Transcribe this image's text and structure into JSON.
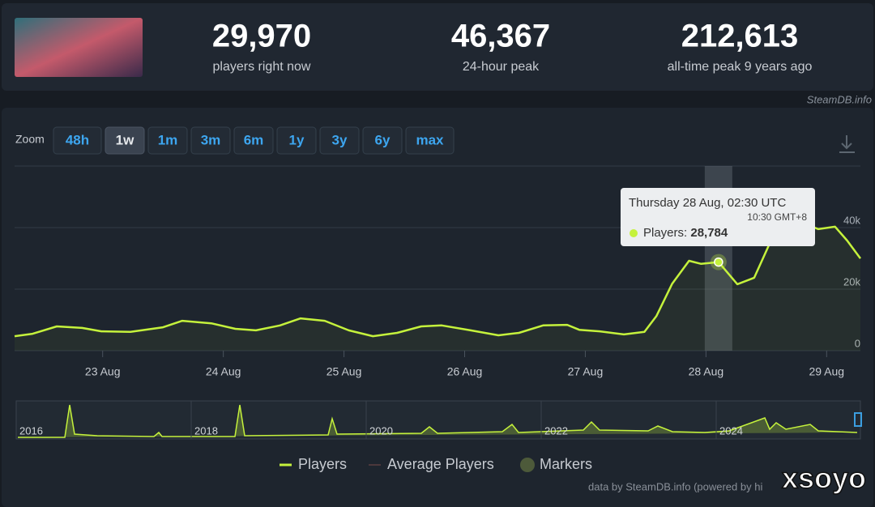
{
  "header": {
    "stats": [
      {
        "value": "29,970",
        "label": "players right now"
      },
      {
        "value": "46,367",
        "label": "24-hour peak"
      },
      {
        "value": "212,613",
        "label": "all-time peak 9 years ago"
      }
    ],
    "site": "SteamDB.info"
  },
  "zoom": {
    "label": "Zoom",
    "buttons": [
      "48h",
      "1w",
      "1m",
      "3m",
      "6m",
      "1y",
      "3y",
      "6y",
      "max"
    ],
    "active": 1
  },
  "chart_data": {
    "type": "line",
    "x": [
      22.27,
      22.42,
      22.62,
      22.83,
      22.99,
      23.23,
      23.5,
      23.66,
      23.9,
      24.1,
      24.27,
      24.47,
      24.64,
      24.84,
      25.04,
      25.24,
      25.44,
      25.64,
      25.81,
      26.05,
      26.28,
      26.45,
      26.65,
      26.85,
      26.95,
      27.12,
      27.32,
      27.49,
      27.59,
      27.72,
      27.86,
      27.96,
      28.104,
      28.26,
      28.4,
      28.53,
      28.65,
      28.73,
      28.8,
      28.93,
      29.07,
      29.17,
      29.28
    ],
    "series": [
      {
        "name": "Players",
        "color": "#c5f23c",
        "values": [
          4700,
          5500,
          7900,
          7400,
          6300,
          6100,
          7600,
          9700,
          8900,
          7100,
          6600,
          8200,
          10500,
          9700,
          6600,
          4700,
          5800,
          7900,
          8200,
          6600,
          5000,
          5800,
          8200,
          8400,
          6800,
          6300,
          5300,
          6100,
          11300,
          21800,
          29200,
          28200,
          28784,
          21600,
          23700,
          35000,
          45000,
          46000,
          41600,
          39500,
          40300,
          35800,
          29970
        ]
      }
    ],
    "xlim": [
      22.27,
      29.28
    ],
    "xticks": [
      {
        "value": 23,
        "label": "23 Aug"
      },
      {
        "value": 24,
        "label": "24 Aug"
      },
      {
        "value": 25,
        "label": "25 Aug"
      },
      {
        "value": 26,
        "label": "26 Aug"
      },
      {
        "value": 27,
        "label": "27 Aug"
      },
      {
        "value": 28,
        "label": "28 Aug"
      },
      {
        "value": 29,
        "label": "29 Aug"
      }
    ],
    "ylim": [
      0,
      60000
    ],
    "yticks": [
      0,
      {
        "value": 20000,
        "label": "20k"
      },
      {
        "value": 40000,
        "label": "40k"
      }
    ],
    "grid": true,
    "highlight_index": 32,
    "tooltip": {
      "title": "Thursday 28 Aug, 02:30 UTC",
      "subtitle": "10:30 GMT+8",
      "label": "Players:",
      "value_label": "28,784"
    },
    "legend": [
      {
        "name": "Players",
        "color": "#c5f23c"
      },
      {
        "name": "Average Players",
        "color": "#7a4a4a"
      },
      {
        "name": "Markers",
        "color": "#4d5a3a"
      }
    ]
  },
  "navigator": {
    "years": [
      "2016",
      "2018",
      "2020",
      "2022",
      "2024"
    ]
  },
  "credit": "data by SteamDB.info (powered by hi",
  "watermark": "xsoyo"
}
